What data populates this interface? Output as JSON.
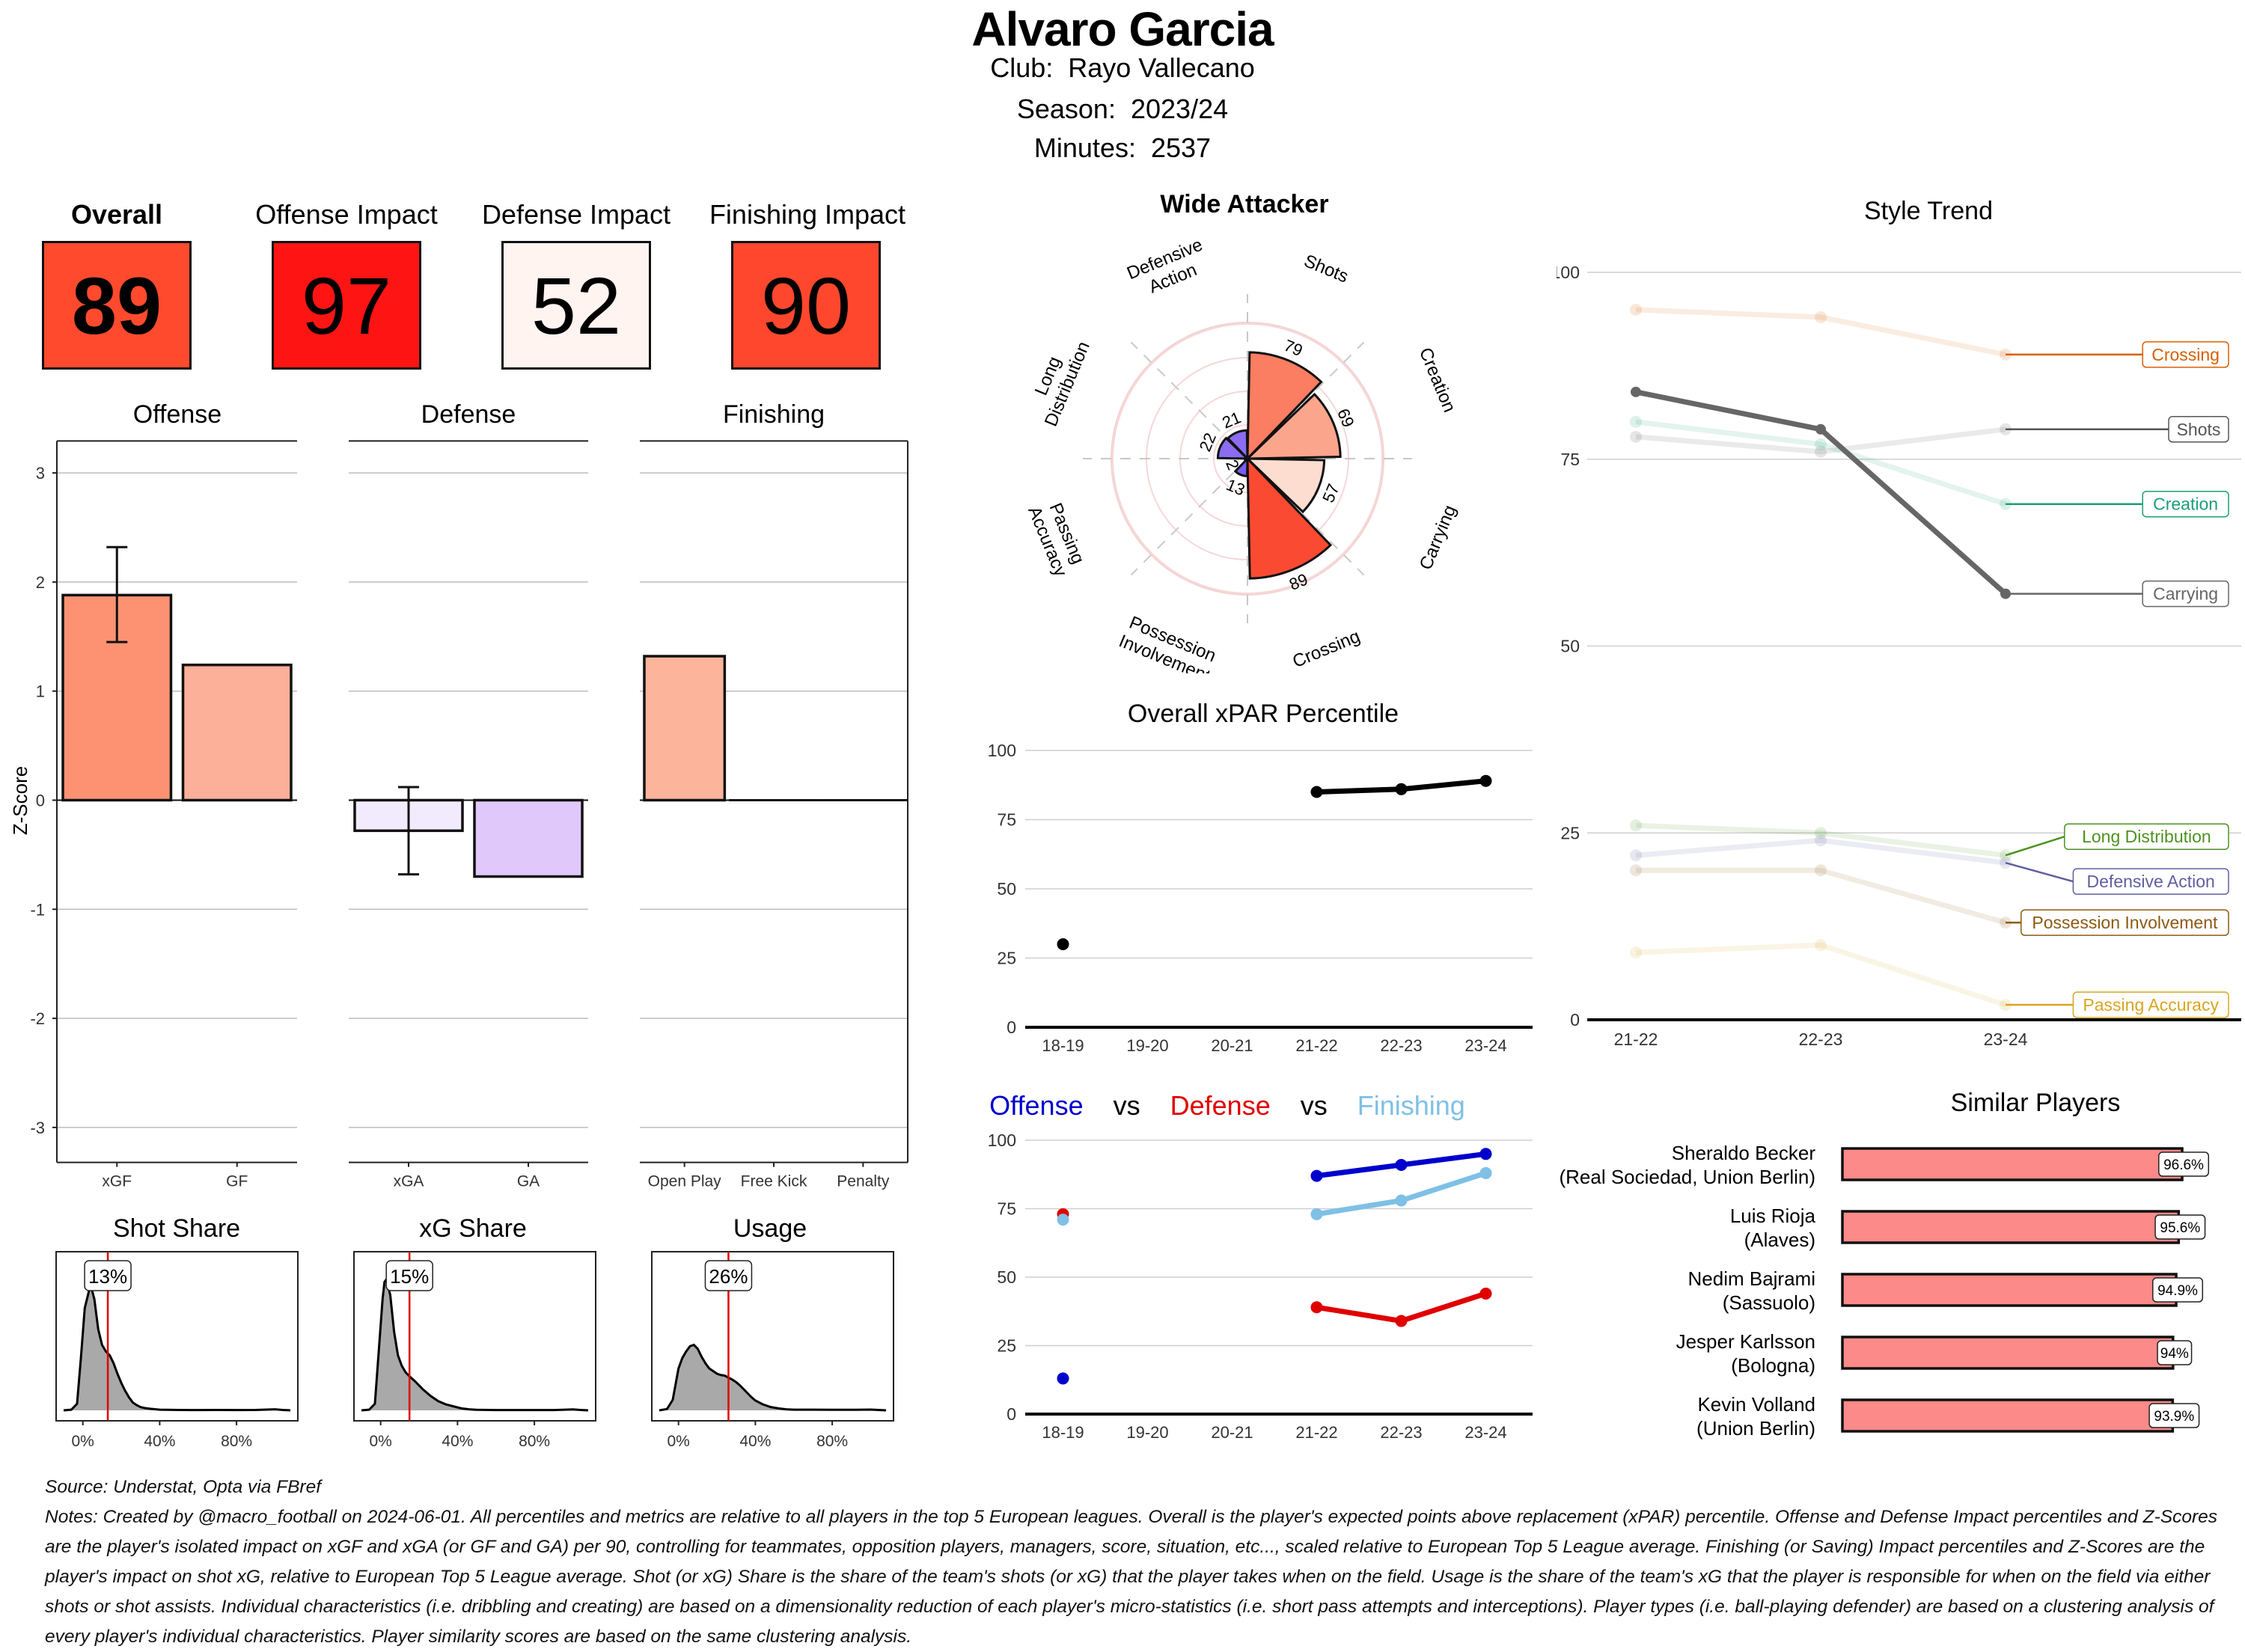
{
  "header": {
    "player_name": "Alvaro Garcia",
    "club_label": "Club:",
    "club": "Rayo Vallecano",
    "season_label": "Season:",
    "season": "2023/24",
    "minutes_label": "Minutes:",
    "minutes": "2537"
  },
  "kpis": [
    {
      "label": "Overall",
      "value": "89",
      "color": "#ff4a2e",
      "bold": true
    },
    {
      "label": "Offense Impact",
      "value": "97",
      "color": "#ff1414",
      "bold": false
    },
    {
      "label": "Defense Impact",
      "value": "52",
      "color": "#fff4f0",
      "bold": false
    },
    {
      "label": "Finishing Impact",
      "value": "90",
      "color": "#ff472e",
      "bold": false
    }
  ],
  "chart_data": [
    {
      "id": "zscore-offense",
      "type": "bar",
      "title": "Offense",
      "ylabel": "Z-Score",
      "ylim": [
        -3.3,
        3.3
      ],
      "yticks": [
        3,
        2,
        1,
        0,
        -1,
        -2,
        -3
      ],
      "categories": [
        "xGF",
        "GF"
      ],
      "values": [
        1.88,
        1.24
      ],
      "colors": [
        "#fc9272",
        "#fcb09a"
      ],
      "error_bars": [
        {
          "category": "xGF",
          "low": 1.45,
          "high": 2.32
        }
      ]
    },
    {
      "id": "zscore-defense",
      "type": "bar",
      "title": "Defense",
      "ylim": [
        -3.3,
        3.3
      ],
      "categories": [
        "xGA",
        "GA"
      ],
      "values": [
        -0.28,
        -0.7
      ],
      "colors": [
        "#f2eafd",
        "#e0c8fb"
      ],
      "error_bars": [
        {
          "category": "xGA",
          "low": -0.68,
          "high": 0.12
        }
      ]
    },
    {
      "id": "zscore-finishing",
      "type": "bar",
      "title": "Finishing",
      "ylim": [
        -3.3,
        3.3
      ],
      "categories": [
        "Open Play",
        "Free Kick",
        "Penalty"
      ],
      "values": [
        1.32,
        0,
        0
      ],
      "colors": [
        "#fcb49a",
        "#fcb49a",
        "#fcb49a"
      ]
    },
    {
      "id": "density-shot-share",
      "type": "area",
      "title": "Shot Share",
      "marker_value": 13,
      "marker_label": "13%",
      "xticks": [
        "0%",
        "40%",
        "80%"
      ],
      "xlim": [
        -10,
        108
      ],
      "x": [
        -10,
        -6,
        -3,
        -1,
        1,
        3,
        4,
        6,
        8,
        10,
        12,
        14,
        16,
        18,
        20,
        22,
        24,
        26,
        28,
        30,
        32,
        35,
        40,
        50,
        60,
        70,
        80,
        90,
        100,
        104,
        108
      ],
      "y": [
        0.0,
        0.005,
        0.05,
        0.4,
        0.78,
        0.9,
        0.96,
        0.85,
        0.62,
        0.5,
        0.45,
        0.42,
        0.36,
        0.28,
        0.21,
        0.15,
        0.1,
        0.06,
        0.04,
        0.025,
        0.018,
        0.012,
        0.005,
        0.003,
        0.002,
        0.003,
        0.002,
        0.003,
        0.008,
        0.003,
        0.0
      ]
    },
    {
      "id": "density-xg-share",
      "type": "area",
      "title": "xG Share",
      "marker_value": 15,
      "marker_label": "15%",
      "xticks": [
        "0%",
        "40%",
        "80%"
      ],
      "xlim": [
        -10,
        108
      ],
      "x": [
        -10,
        -6,
        -3,
        -1,
        1,
        2,
        3,
        5,
        7,
        9,
        11,
        13,
        15,
        18,
        22,
        26,
        30,
        34,
        38,
        42,
        46,
        50,
        60,
        70,
        80,
        90,
        100,
        104,
        108
      ],
      "y": [
        0.0,
        0.005,
        0.05,
        0.45,
        0.85,
        0.98,
        1.0,
        0.88,
        0.6,
        0.42,
        0.34,
        0.29,
        0.26,
        0.22,
        0.16,
        0.11,
        0.07,
        0.045,
        0.03,
        0.015,
        0.008,
        0.004,
        0.002,
        0.002,
        0.002,
        0.002,
        0.007,
        0.003,
        0.0
      ]
    },
    {
      "id": "density-usage",
      "type": "area",
      "title": "Usage",
      "marker_value": 26,
      "marker_label": "26%",
      "xticks": [
        "0%",
        "40%",
        "80%"
      ],
      "xlim": [
        -10,
        108
      ],
      "x": [
        -10,
        -6,
        -3,
        0,
        2,
        4,
        6,
        8,
        10,
        12,
        14,
        16,
        18,
        20,
        22,
        24,
        26,
        28,
        30,
        32,
        34,
        36,
        38,
        40,
        44,
        48,
        52,
        56,
        60,
        70,
        80,
        90,
        100,
        104,
        108
      ],
      "y": [
        0.0,
        0.01,
        0.08,
        0.32,
        0.4,
        0.45,
        0.49,
        0.5,
        0.47,
        0.41,
        0.36,
        0.32,
        0.3,
        0.28,
        0.27,
        0.265,
        0.25,
        0.235,
        0.215,
        0.19,
        0.16,
        0.13,
        0.1,
        0.075,
        0.045,
        0.025,
        0.015,
        0.008,
        0.005,
        0.005,
        0.004,
        0.004,
        0.006,
        0.003,
        0.0
      ]
    },
    {
      "id": "polar-wide-attacker",
      "type": "bar",
      "title": "Wide Attacker",
      "polar": true,
      "categories": [
        "Shots",
        "Creation",
        "Carrying",
        "Crossing",
        "Possession Involvement",
        "Passing Accuracy",
        "Long Distribution",
        "Defensive Action"
      ],
      "label_lines": [
        [
          "Shots"
        ],
        [
          "Creation"
        ],
        [
          "Carrying"
        ],
        [
          "Crossing"
        ],
        [
          "Possession",
          "Involvement"
        ],
        [
          "Passing",
          "Accuracy"
        ],
        [
          "Long",
          "Distribution"
        ],
        [
          "Defensive",
          "Action"
        ]
      ],
      "values": [
        79,
        69,
        57,
        89,
        13,
        2,
        22,
        21
      ],
      "colors": [
        "#fb7d62",
        "#fca58d",
        "#fdddd0",
        "#fb4a32",
        "#7b5cf0",
        "#7b5cf0",
        "#8b6cf2",
        "#8b6cf2"
      ],
      "rlim": [
        0,
        100
      ],
      "rings": [
        25,
        50,
        75,
        100
      ]
    },
    {
      "id": "xpar-percentile",
      "type": "line",
      "title": "Overall xPAR Percentile",
      "categories": [
        "18-19",
        "19-20",
        "20-21",
        "21-22",
        "22-23",
        "23-24"
      ],
      "ylim": [
        0,
        100
      ],
      "yticks": [
        0,
        25,
        50,
        75,
        100
      ],
      "series": [
        {
          "name": "Overall xPAR",
          "color": "#000000",
          "values": [
            30,
            null,
            null,
            85,
            86,
            89
          ]
        }
      ]
    },
    {
      "id": "off-def-fin",
      "type": "line",
      "title_parts": [
        {
          "text": "Offense",
          "color": "#0000cc"
        },
        {
          "text": "vs",
          "color": "#000000"
        },
        {
          "text": "Defense",
          "color": "#e00000"
        },
        {
          "text": "vs",
          "color": "#000000"
        },
        {
          "text": "Finishing",
          "color": "#7ec0e6"
        }
      ],
      "categories": [
        "18-19",
        "19-20",
        "20-21",
        "21-22",
        "22-23",
        "23-24"
      ],
      "ylim": [
        0,
        100
      ],
      "yticks": [
        0,
        25,
        50,
        75,
        100
      ],
      "series": [
        {
          "name": "Defense",
          "color": "#e00000",
          "values": [
            73,
            null,
            null,
            39,
            34,
            44
          ]
        },
        {
          "name": "Finishing",
          "color": "#7ec0e6",
          "values": [
            71,
            null,
            null,
            73,
            78,
            88
          ]
        },
        {
          "name": "Offense",
          "color": "#0000cc",
          "values": [
            13,
            null,
            null,
            87,
            91,
            95
          ]
        }
      ]
    },
    {
      "id": "style-trend",
      "type": "line",
      "title": "Style Trend",
      "categories": [
        "21-22",
        "22-23",
        "23-24"
      ],
      "ylim": [
        0,
        100
      ],
      "yticks": [
        0,
        25,
        50,
        75,
        100
      ],
      "highlight": "Carrying",
      "series": [
        {
          "name": "Crossing",
          "color": "#d95f02",
          "values": [
            95,
            94,
            89
          ]
        },
        {
          "name": "Shots",
          "color": "#555555",
          "values": [
            78,
            76,
            79
          ]
        },
        {
          "name": "Creation",
          "color": "#1b9e77",
          "values": [
            80,
            77,
            69
          ]
        },
        {
          "name": "Carrying",
          "color": "#666666",
          "values": [
            84,
            79,
            57
          ]
        },
        {
          "name": "Long Distribution",
          "color": "#4d9221",
          "values": [
            26,
            25,
            22
          ]
        },
        {
          "name": "Defensive Action",
          "color": "#5e5ea0",
          "values": [
            22,
            24,
            21
          ]
        },
        {
          "name": "Possession Involvement",
          "color": "#8c5a12",
          "values": [
            20,
            20,
            13
          ]
        },
        {
          "name": "Passing Accuracy",
          "color": "#d9a520",
          "values": [
            9,
            10,
            2
          ]
        }
      ],
      "label_y": {
        "Crossing": 89,
        "Shots": 79,
        "Creation": 69,
        "Carrying": 57,
        "Long Distribution": 24.5,
        "Defensive Action": 18.5,
        "Possession Involvement": 13,
        "Passing Accuracy": 2
      }
    },
    {
      "id": "similar-players",
      "type": "bar",
      "orientation": "horizontal",
      "title": "Similar Players",
      "categories": [
        "Sheraldo Becker",
        "Luis Rioja",
        "Nedim Bajrami",
        "Jesper Karlsson",
        "Kevin Volland"
      ],
      "clubs": [
        "(Real Sociedad, Union Berlin)",
        "(Alaves)",
        "(Sassuolo)",
        "(Bologna)",
        "(Union Berlin)"
      ],
      "values": [
        96.6,
        95.6,
        94.9,
        94.0,
        93.9
      ],
      "value_labels": [
        "96.6%",
        "95.6%",
        "94.9%",
        "94%",
        "93.9%"
      ],
      "color": "#fb8a88"
    }
  ],
  "footer": {
    "source": "Source: Understat, Opta via FBref",
    "notes": "Notes: Created by @macro_football on 2024-06-01. All percentiles and metrics are relative to all players in the top 5 European leagues. Overall is the player's expected points above replacement (xPAR) percentile. Offense and Defense Impact percentiles and Z-Scores are the player's isolated impact on xGF and xGA (or GF and GA) per 90, controlling for teammates, opposition players, managers, score, situation, etc..., scaled relative to European Top 5 League average. Finishing (or Saving) Impact percentiles and Z-Scores are the player's impact on shot xG, relative to European Top 5 League average. Shot (or xG) Share is the share of the team's shots (or xG) that the player takes when on the field. Usage is the share of the team's xG that the player is responsible for when on the field via either shots or shot assists. Individual characteristics (i.e. dribbling and creating) are based on a dimensionality reduction of each player's micro-statistics (i.e. short pass attempts and interceptions). Player types (i.e. ball-playing defender) are based on a clustering analysis of every player's individual characteristics. Player similarity scores are based on the same clustering analysis."
  }
}
